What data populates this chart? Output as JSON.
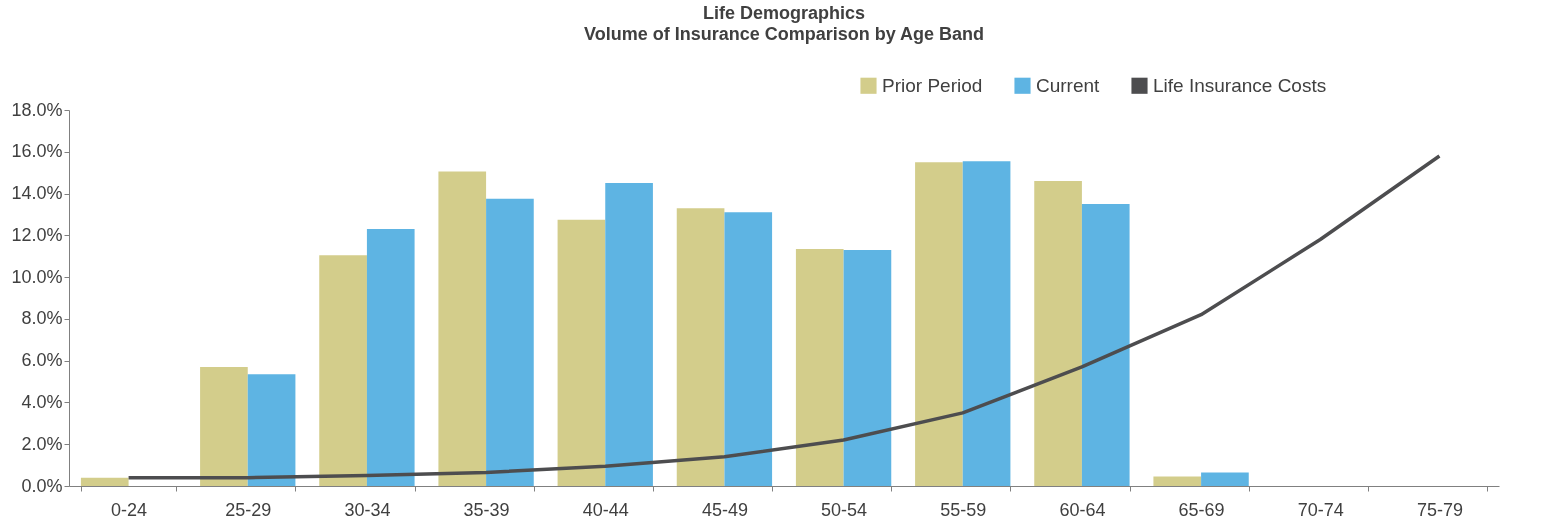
{
  "chart_data": {
    "type": "bar",
    "title": "Life Demographics",
    "subtitle": "Volume of Insurance Comparison by Age Band",
    "categories": [
      "0-24",
      "25-29",
      "30-34",
      "35-39",
      "40-44",
      "45-49",
      "50-54",
      "55-59",
      "60-64",
      "65-69",
      "70-74",
      "75-79"
    ],
    "series": [
      {
        "name": "Prior Period",
        "color": "#d3cd8b",
        "values": [
          0.4,
          5.7,
          11.05,
          15.05,
          12.75,
          13.3,
          11.35,
          15.5,
          14.6,
          0.45,
          0,
          0
        ]
      },
      {
        "name": "Current",
        "color": "#5eb4e3",
        "values": [
          0,
          5.35,
          12.3,
          13.75,
          14.5,
          13.1,
          11.3,
          15.55,
          13.5,
          0.65,
          0,
          0
        ]
      },
      {
        "name": "Life Insurance Costs",
        "type": "line",
        "color": "#4d4d4f",
        "values": [
          0.4,
          0.4,
          0.5,
          0.65,
          0.95,
          1.4,
          2.2,
          3.5,
          5.7,
          8.2,
          11.8,
          15.8
        ]
      }
    ],
    "ylim": [
      0,
      18
    ],
    "yticks": [
      {
        "value": 0,
        "label": "0.0%"
      },
      {
        "value": 2,
        "label": "2.0%"
      },
      {
        "value": 4,
        "label": "4.0%"
      },
      {
        "value": 6,
        "label": "6.0%"
      },
      {
        "value": 8,
        "label": "8.0%"
      },
      {
        "value": 10,
        "label": "10.0%"
      },
      {
        "value": 12,
        "label": "12.0%"
      },
      {
        "value": 14,
        "label": "14.0%"
      },
      {
        "value": 16,
        "label": "16.0%"
      },
      {
        "value": 18,
        "label": "18.0%"
      }
    ],
    "grid": false,
    "legend": "top right",
    "marker": "none",
    "line_style": "solid"
  }
}
